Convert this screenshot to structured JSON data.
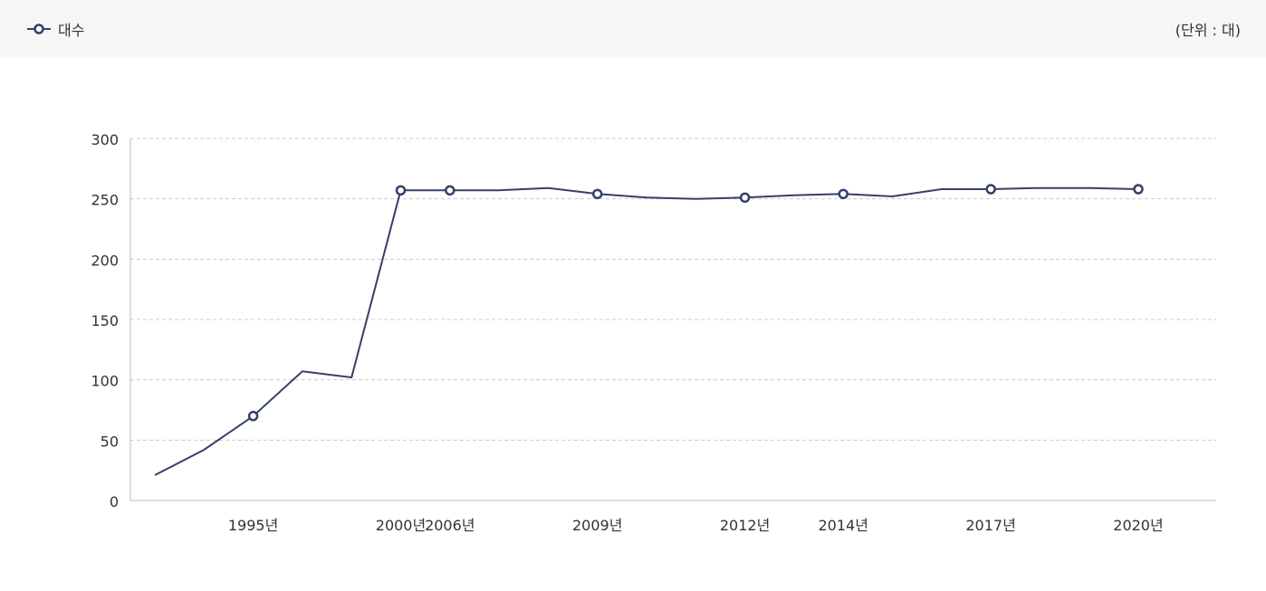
{
  "legend": {
    "label": "대수",
    "icon": "line-circle-marker-icon"
  },
  "unit_label": "(단위 : 대)",
  "colors": {
    "line": "#363f6b",
    "grid": "#cccccc",
    "axis": "#bbbbbb",
    "header_bg": "#f6f6f6"
  },
  "chart_data": {
    "type": "line",
    "title": "",
    "xlabel": "",
    "ylabel": "",
    "ylim": [
      0,
      300
    ],
    "yticks": [
      0,
      50,
      100,
      150,
      200,
      250,
      300
    ],
    "grid": true,
    "legend_position": "top-left",
    "series": [
      {
        "name": "대수",
        "points": [
          {
            "x": "1993",
            "y": 21,
            "label": "",
            "marker": false
          },
          {
            "x": "1994",
            "y": 42,
            "label": "",
            "marker": false
          },
          {
            "x": "1995",
            "y": 70,
            "label": "1995년",
            "marker": true
          },
          {
            "x": "1996",
            "y": 107,
            "label": "",
            "marker": false
          },
          {
            "x": "1997",
            "y": 102,
            "label": "",
            "marker": false
          },
          {
            "x": "2000",
            "y": 257,
            "label": "2000년",
            "marker": true
          },
          {
            "x": "2006",
            "y": 257,
            "label": "2006년",
            "marker": true
          },
          {
            "x": "2007",
            "y": 257,
            "label": "",
            "marker": false
          },
          {
            "x": "2008",
            "y": 259,
            "label": "",
            "marker": false
          },
          {
            "x": "2009",
            "y": 254,
            "label": "2009년",
            "marker": true
          },
          {
            "x": "2010",
            "y": 251,
            "label": "",
            "marker": false
          },
          {
            "x": "2011",
            "y": 250,
            "label": "",
            "marker": false
          },
          {
            "x": "2012",
            "y": 251,
            "label": "2012년",
            "marker": true
          },
          {
            "x": "2013",
            "y": 253,
            "label": "",
            "marker": false
          },
          {
            "x": "2014",
            "y": 254,
            "label": "2014년",
            "marker": true
          },
          {
            "x": "2015",
            "y": 252,
            "label": "",
            "marker": false
          },
          {
            "x": "2016",
            "y": 258,
            "label": "",
            "marker": false
          },
          {
            "x": "2017",
            "y": 258,
            "label": "2017년",
            "marker": true
          },
          {
            "x": "2018",
            "y": 259,
            "label": "",
            "marker": false
          },
          {
            "x": "2019",
            "y": 259,
            "label": "",
            "marker": false
          },
          {
            "x": "2020",
            "y": 258,
            "label": "2020년",
            "marker": true
          }
        ]
      }
    ]
  }
}
